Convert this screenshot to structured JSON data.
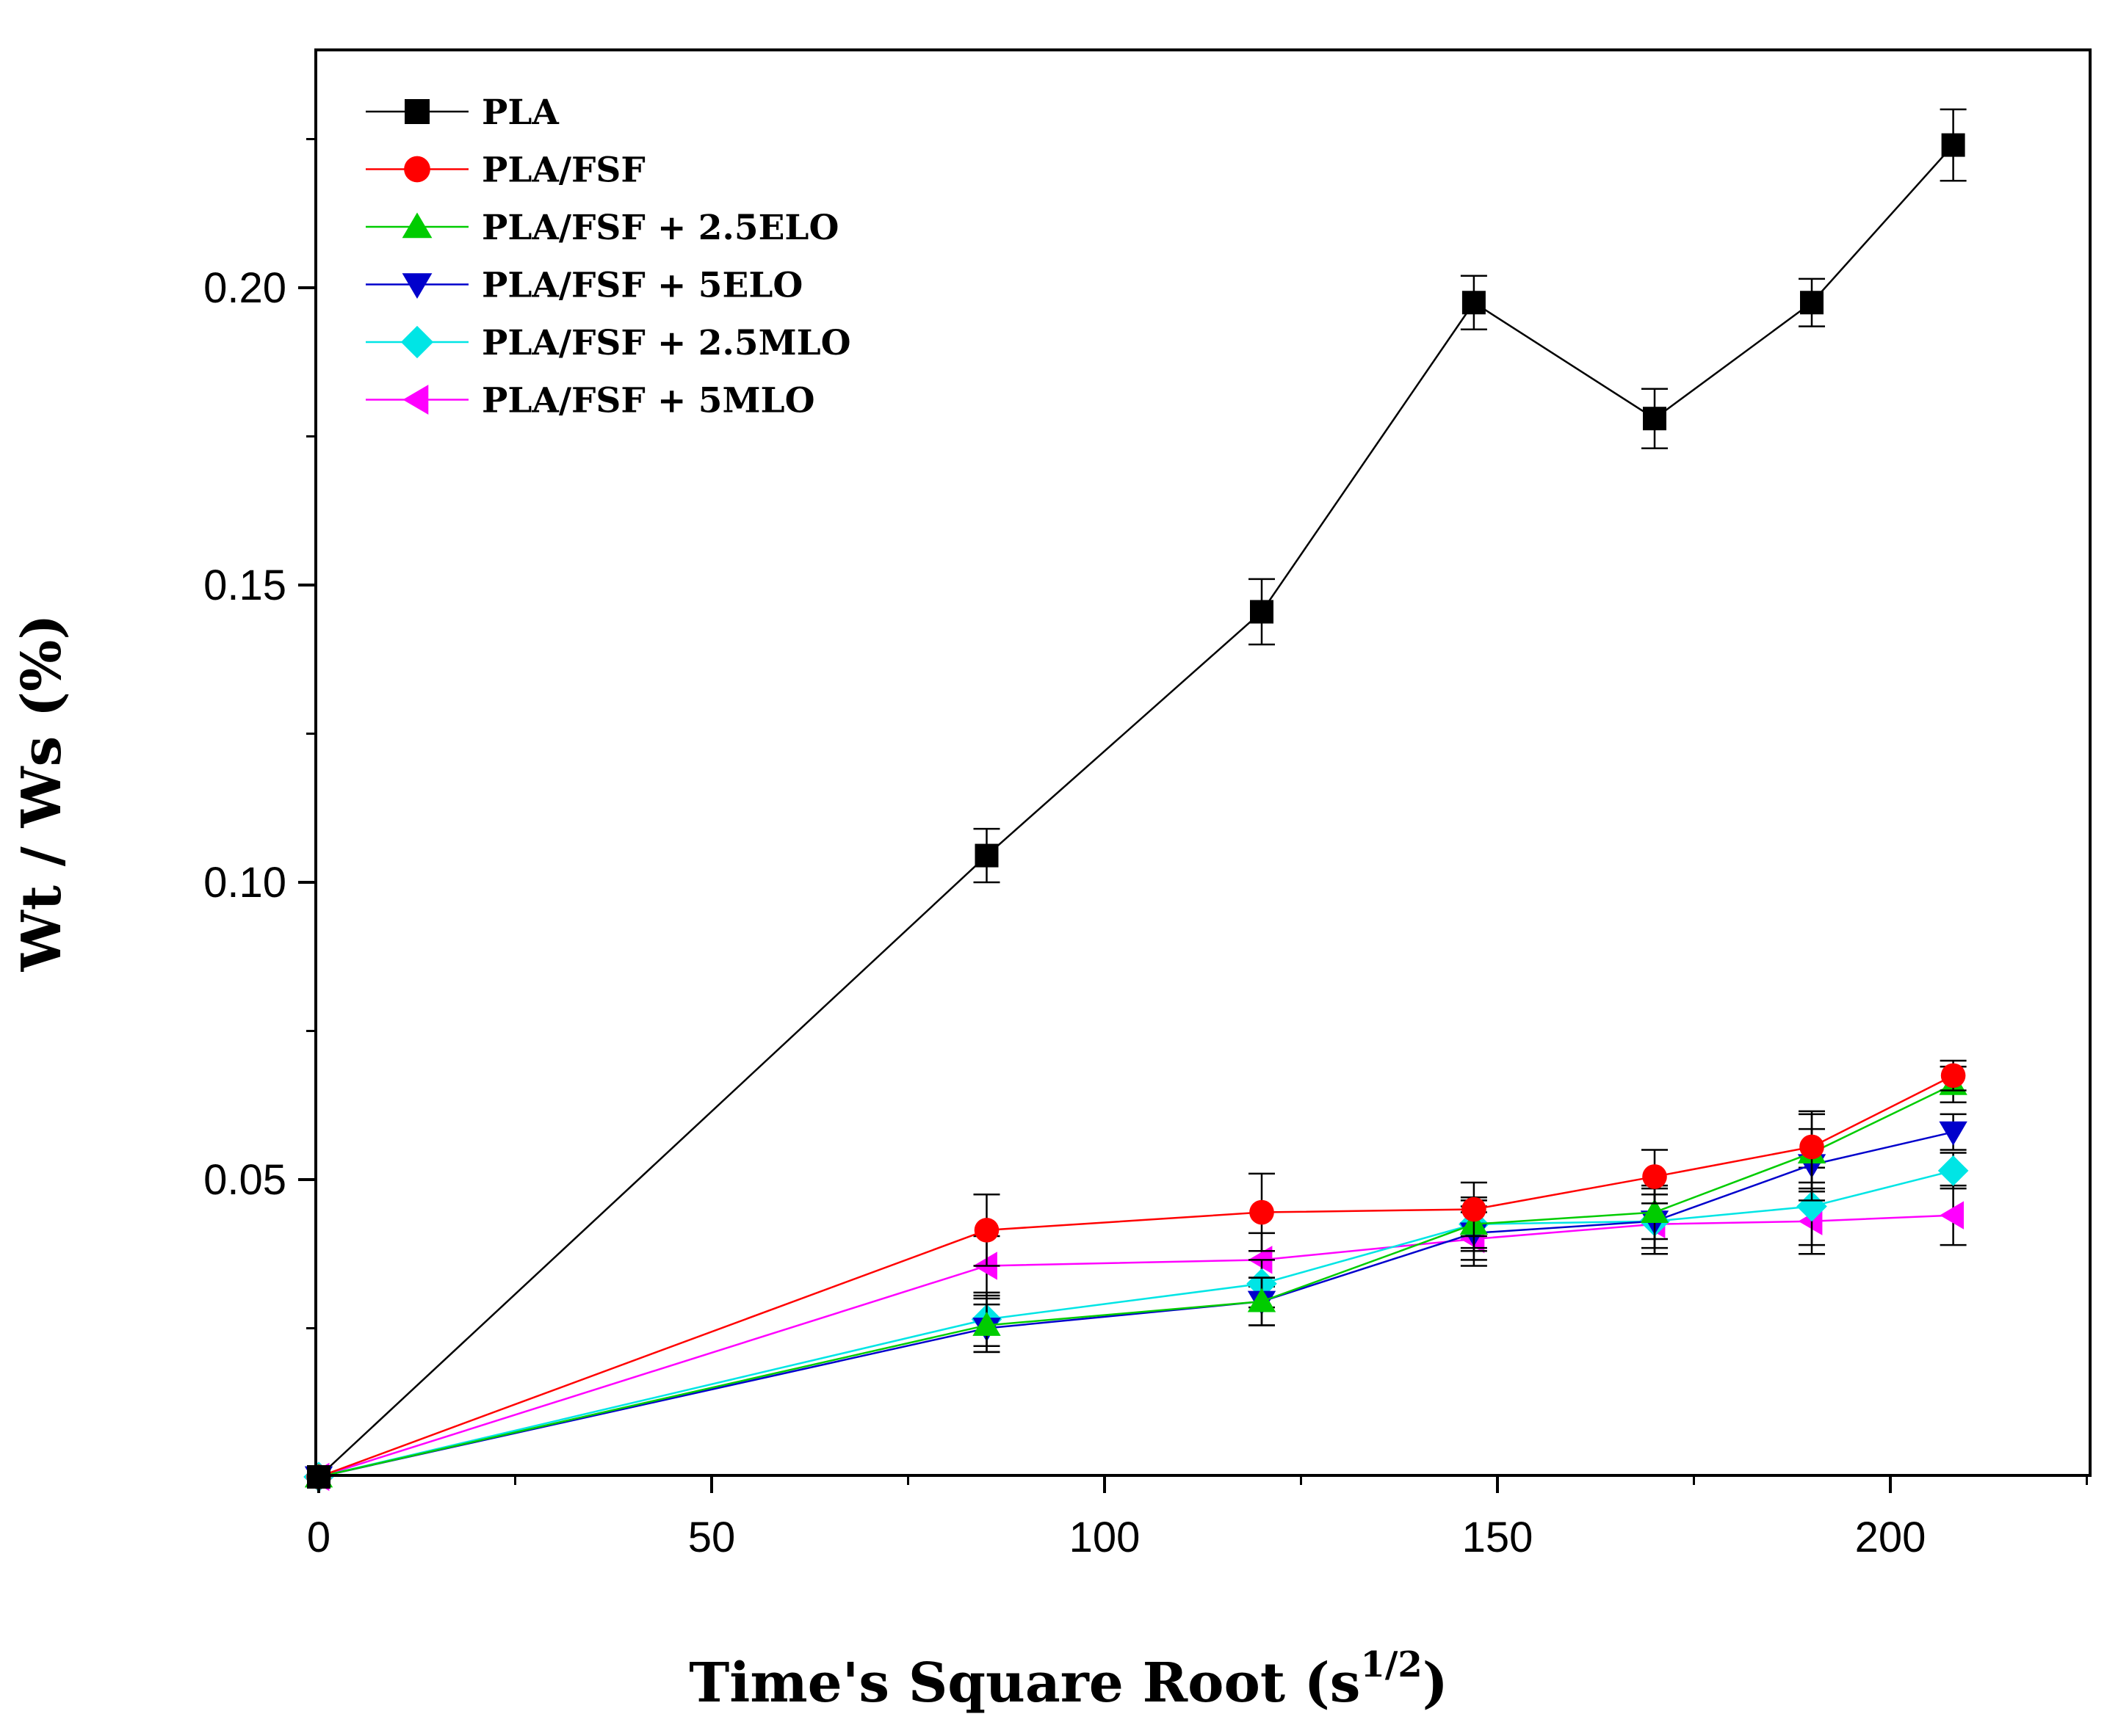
{
  "chart_data": {
    "type": "line",
    "title": "",
    "xlabel": "Time's Square Root (s",
    "xlabel_sup": "1/2",
    "xlabel_end": ")",
    "ylabel": "Wt / Ws (%)",
    "xlim": [
      0,
      225
    ],
    "ylim": [
      0,
      0.24
    ],
    "x_ticks": [
      0,
      50,
      100,
      150,
      200
    ],
    "x_tick_labels": [
      "0",
      "50",
      "100",
      "150",
      "200"
    ],
    "x_minor_ticks": [
      25,
      75,
      125,
      175,
      225
    ],
    "y_ticks": [
      0.05,
      0.1,
      0.15,
      0.2
    ],
    "y_tick_labels": [
      "0.05",
      "0.10",
      "0.15",
      "0.20"
    ],
    "y_minor_ticks": [
      0.025,
      0.075,
      0.125,
      0.175,
      0.225
    ],
    "grid": false,
    "legend_position": "top-left",
    "x": [
      0,
      85,
      120,
      147,
      170,
      190,
      208
    ],
    "series": [
      {
        "name": "PLA",
        "color": "#000000",
        "marker": "square",
        "values": [
          0,
          0.1045,
          0.1455,
          0.1975,
          0.178,
          0.1975,
          0.224
        ],
        "errors": [
          0,
          0.0045,
          0.0055,
          0.0045,
          0.005,
          0.004,
          0.006
        ]
      },
      {
        "name": "PLA/FSF",
        "color": "#ff0000",
        "marker": "circle",
        "values": [
          0,
          0.0415,
          0.0445,
          0.045,
          0.0505,
          0.0555,
          0.0675
        ],
        "errors": [
          0,
          0.006,
          0.0065,
          0.0045,
          0.0045,
          0.006,
          0.0025
        ]
      },
      {
        "name": "PLA/FSF + 2.5ELO",
        "color": "#00cc00",
        "marker": "triangle-up",
        "values": [
          0,
          0.0255,
          0.0295,
          0.0425,
          0.0445,
          0.0545,
          0.066
        ],
        "errors": [
          0,
          0.0045,
          0.004,
          0.0045,
          0.0045,
          0.0065,
          0.003
        ]
      },
      {
        "name": "PLA/FSF + 5ELO",
        "color": "#0000cc",
        "marker": "triangle-down",
        "values": [
          0,
          0.025,
          0.0295,
          0.041,
          0.043,
          0.0525,
          0.058
        ],
        "errors": [
          0,
          0.004,
          0.004,
          0.0045,
          0.0055,
          0.006,
          0.003
        ]
      },
      {
        "name": "PLA/FSF + 2.5MLO",
        "color": "#00e5e5",
        "marker": "diamond",
        "values": [
          0,
          0.0265,
          0.0325,
          0.0425,
          0.043,
          0.0455,
          0.0515
        ],
        "errors": [
          0,
          0.0045,
          0.004,
          0.004,
          0.0045,
          0.0065,
          0.003
        ]
      },
      {
        "name": "PLA/FSF + 5MLO",
        "color": "#ff00ff",
        "marker": "triangle-left",
        "values": [
          0,
          0.0355,
          0.0365,
          0.04,
          0.0425,
          0.043,
          0.044
        ],
        "errors": [
          0,
          0.005,
          0.0045,
          0.0045,
          0.005,
          0.0055,
          0.005
        ]
      }
    ]
  }
}
